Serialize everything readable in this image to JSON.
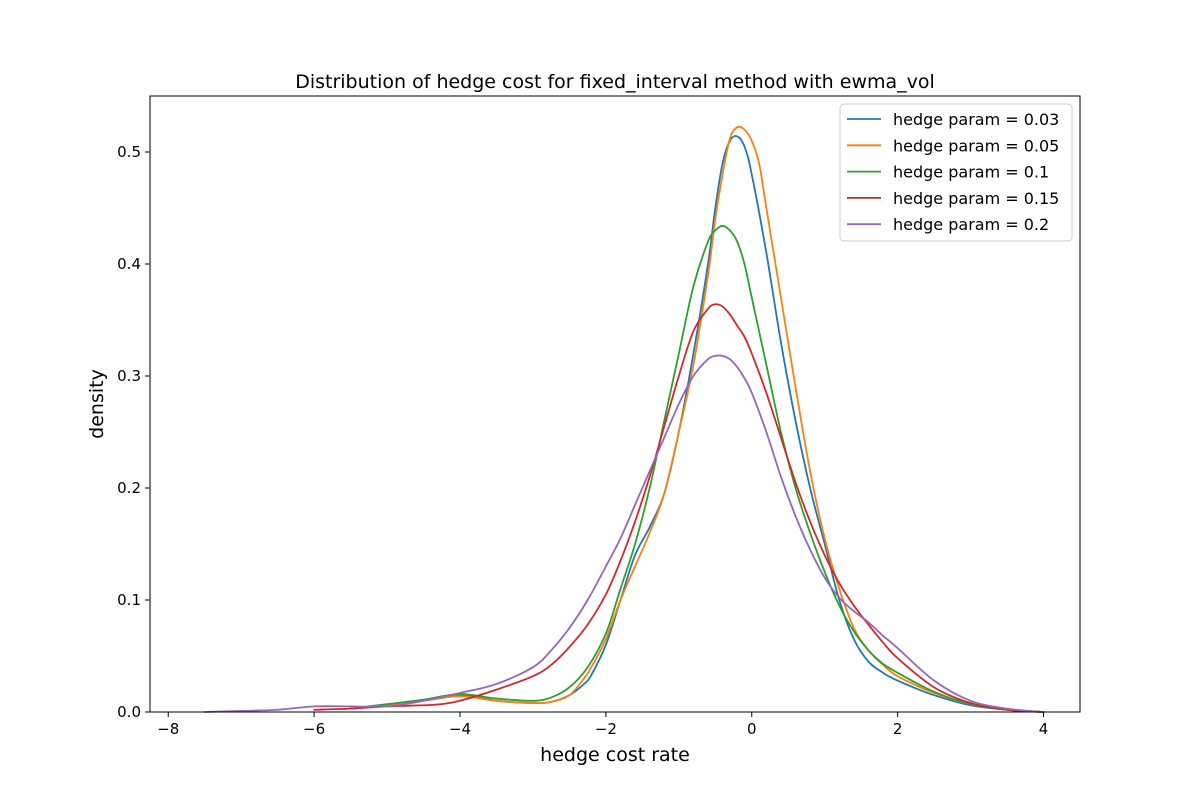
{
  "chart_data": {
    "type": "line",
    "title": "Distribution of hedge cost for fixed_interval method with ewma_vol",
    "xlabel": "hedge cost rate",
    "ylabel": "density",
    "xlim": [
      -8.25,
      4.5
    ],
    "ylim": [
      0.0,
      0.55
    ],
    "xticks": [
      -8,
      -6,
      -4,
      -2,
      0,
      2,
      4
    ],
    "xtick_labels": [
      "−8",
      "−6",
      "−4",
      "−2",
      "0",
      "2",
      "4"
    ],
    "yticks": [
      0.0,
      0.1,
      0.2,
      0.3,
      0.4,
      0.5
    ],
    "ytick_labels": [
      "0.0",
      "0.1",
      "0.2",
      "0.3",
      "0.4",
      "0.5"
    ],
    "grid": false,
    "legend_position": "top-right",
    "series": [
      {
        "name": "hedge param = 0.03",
        "color": "#1f77b4",
        "x": [
          -5.5,
          -5.0,
          -4.5,
          -4.0,
          -3.5,
          -3.0,
          -2.75,
          -2.5,
          -2.3,
          -2.2,
          -2.0,
          -1.8,
          -1.6,
          -1.4,
          -1.2,
          -1.0,
          -0.8,
          -0.6,
          -0.5,
          -0.4,
          -0.3,
          -0.2,
          -0.1,
          0.0,
          0.2,
          0.4,
          0.6,
          0.8,
          1.0,
          1.2,
          1.4,
          1.6,
          1.8,
          2.0,
          2.5,
          3.0,
          3.5,
          4.0
        ],
        "y": [
          0.003,
          0.006,
          0.01,
          0.015,
          0.01,
          0.008,
          0.009,
          0.015,
          0.025,
          0.033,
          0.06,
          0.1,
          0.14,
          0.165,
          0.195,
          0.25,
          0.32,
          0.4,
          0.45,
          0.49,
          0.51,
          0.514,
          0.505,
          0.48,
          0.41,
          0.33,
          0.26,
          0.2,
          0.15,
          0.1,
          0.065,
          0.045,
          0.035,
          0.028,
          0.015,
          0.006,
          0.002,
          0.0
        ]
      },
      {
        "name": "hedge param = 0.05",
        "color": "#ff7f0e",
        "x": [
          -5.5,
          -5.0,
          -4.5,
          -4.0,
          -3.5,
          -3.0,
          -2.75,
          -2.5,
          -2.3,
          -2.2,
          -2.0,
          -1.8,
          -1.6,
          -1.4,
          -1.2,
          -1.0,
          -0.8,
          -0.6,
          -0.5,
          -0.4,
          -0.3,
          -0.2,
          -0.1,
          0.0,
          0.1,
          0.2,
          0.4,
          0.6,
          0.8,
          1.0,
          1.2,
          1.4,
          1.6,
          1.8,
          2.0,
          2.5,
          3.0,
          3.5,
          4.0
        ],
        "y": [
          0.003,
          0.006,
          0.01,
          0.014,
          0.01,
          0.008,
          0.009,
          0.015,
          0.03,
          0.04,
          0.065,
          0.1,
          0.13,
          0.16,
          0.195,
          0.25,
          0.31,
          0.39,
          0.44,
          0.48,
          0.512,
          0.522,
          0.52,
          0.51,
          0.49,
          0.45,
          0.37,
          0.29,
          0.215,
          0.155,
          0.11,
          0.075,
          0.055,
          0.042,
          0.032,
          0.017,
          0.007,
          0.002,
          0.0
        ]
      },
      {
        "name": "hedge param = 0.1",
        "color": "#2ca02c",
        "x": [
          -5.5,
          -5.0,
          -4.5,
          -4.0,
          -3.5,
          -3.0,
          -2.75,
          -2.5,
          -2.25,
          -2.0,
          -1.8,
          -1.6,
          -1.4,
          -1.2,
          -1.0,
          -0.8,
          -0.6,
          -0.5,
          -0.4,
          -0.3,
          -0.2,
          -0.1,
          0.0,
          0.2,
          0.4,
          0.6,
          0.8,
          1.0,
          1.2,
          1.4,
          1.6,
          1.8,
          2.0,
          2.5,
          3.0,
          3.5,
          4.0
        ],
        "y": [
          0.003,
          0.007,
          0.011,
          0.016,
          0.012,
          0.01,
          0.013,
          0.022,
          0.04,
          0.07,
          0.11,
          0.15,
          0.2,
          0.26,
          0.32,
          0.38,
          0.42,
          0.43,
          0.434,
          0.43,
          0.42,
          0.4,
          0.37,
          0.31,
          0.25,
          0.2,
          0.16,
          0.125,
          0.095,
          0.072,
          0.055,
          0.043,
          0.035,
          0.018,
          0.007,
          0.002,
          0.0
        ]
      },
      {
        "name": "hedge param = 0.15",
        "color": "#d62728",
        "x": [
          -6.0,
          -5.5,
          -5.0,
          -4.5,
          -4.25,
          -4.0,
          -3.5,
          -3.0,
          -2.75,
          -2.5,
          -2.25,
          -2.0,
          -1.8,
          -1.6,
          -1.4,
          -1.2,
          -1.0,
          -0.8,
          -0.6,
          -0.5,
          -0.4,
          -0.3,
          -0.2,
          -0.1,
          0.0,
          0.2,
          0.4,
          0.6,
          0.8,
          1.0,
          1.2,
          1.4,
          1.6,
          1.8,
          2.0,
          2.5,
          3.0,
          3.5,
          4.0
        ],
        "y": [
          0.002,
          0.003,
          0.005,
          0.006,
          0.007,
          0.01,
          0.02,
          0.032,
          0.042,
          0.058,
          0.078,
          0.105,
          0.135,
          0.17,
          0.21,
          0.255,
          0.3,
          0.34,
          0.36,
          0.364,
          0.362,
          0.355,
          0.345,
          0.335,
          0.32,
          0.285,
          0.245,
          0.205,
          0.17,
          0.14,
          0.115,
          0.095,
          0.078,
          0.062,
          0.048,
          0.022,
          0.008,
          0.002,
          0.0
        ]
      },
      {
        "name": "hedge param = 0.2",
        "color": "#9467bd",
        "x": [
          -7.5,
          -7.0,
          -6.5,
          -6.0,
          -5.5,
          -5.0,
          -4.5,
          -4.0,
          -3.5,
          -3.0,
          -2.75,
          -2.5,
          -2.25,
          -2.0,
          -1.8,
          -1.6,
          -1.4,
          -1.2,
          -1.0,
          -0.8,
          -0.6,
          -0.5,
          -0.4,
          -0.3,
          -0.2,
          -0.1,
          0.0,
          0.2,
          0.4,
          0.6,
          0.8,
          1.0,
          1.2,
          1.4,
          1.6,
          1.8,
          2.0,
          2.5,
          3.0,
          3.5,
          4.0
        ],
        "y": [
          0.0,
          0.001,
          0.002,
          0.005,
          0.005,
          0.005,
          0.01,
          0.017,
          0.025,
          0.04,
          0.055,
          0.075,
          0.1,
          0.13,
          0.155,
          0.185,
          0.215,
          0.245,
          0.275,
          0.3,
          0.315,
          0.318,
          0.318,
          0.315,
          0.308,
          0.298,
          0.285,
          0.25,
          0.21,
          0.175,
          0.145,
          0.12,
          0.102,
          0.09,
          0.08,
          0.068,
          0.057,
          0.028,
          0.01,
          0.003,
          0.0
        ]
      }
    ]
  }
}
